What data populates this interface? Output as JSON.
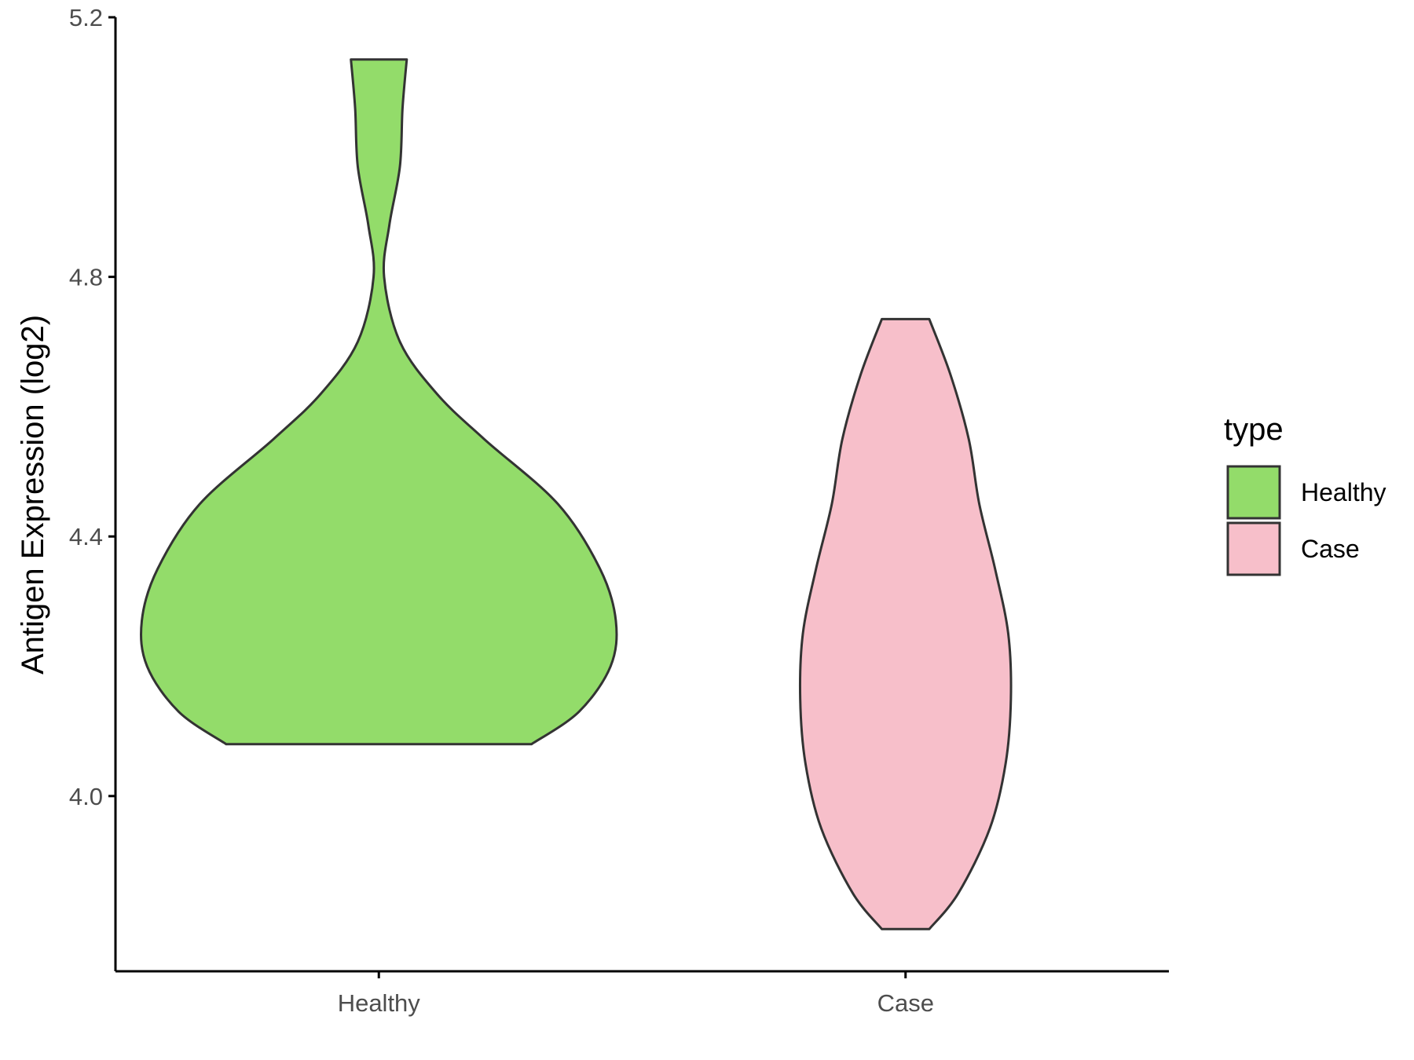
{
  "chart_data": {
    "type": "violin",
    "title": "",
    "xlabel": "",
    "ylabel": "Antigen Expression (log2)",
    "ylim": [
      3.73,
      5.2
    ],
    "yticks": [
      "4.0",
      "4.4",
      "4.8",
      "5.2"
    ],
    "categories": [
      "Healthy",
      "Case"
    ],
    "grid": false,
    "legend": {
      "title": "type",
      "position": "right",
      "entries": [
        "Healthy",
        "Case"
      ]
    },
    "series": [
      {
        "name": "Healthy",
        "color": "#93dc6a",
        "min": 4.08,
        "max": 5.135,
        "density_profile": [
          {
            "y": 4.08,
            "half_width": 0.29
          },
          {
            "y": 4.13,
            "half_width": 0.38
          },
          {
            "y": 4.2,
            "half_width": 0.44
          },
          {
            "y": 4.27,
            "half_width": 0.45
          },
          {
            "y": 4.35,
            "half_width": 0.42
          },
          {
            "y": 4.45,
            "half_width": 0.34
          },
          {
            "y": 4.55,
            "half_width": 0.2
          },
          {
            "y": 4.62,
            "half_width": 0.11
          },
          {
            "y": 4.7,
            "half_width": 0.04
          },
          {
            "y": 4.8,
            "half_width": 0.01
          },
          {
            "y": 4.88,
            "half_width": 0.02
          },
          {
            "y": 4.97,
            "half_width": 0.04
          },
          {
            "y": 5.06,
            "half_width": 0.045
          },
          {
            "y": 5.135,
            "half_width": 0.053
          }
        ]
      },
      {
        "name": "Case",
        "color": "#f7bfca",
        "min": 3.795,
        "max": 4.735,
        "density_profile": [
          {
            "y": 3.795,
            "half_width": 0.045
          },
          {
            "y": 3.85,
            "half_width": 0.1
          },
          {
            "y": 3.95,
            "half_width": 0.16
          },
          {
            "y": 4.05,
            "half_width": 0.19
          },
          {
            "y": 4.15,
            "half_width": 0.2
          },
          {
            "y": 4.25,
            "half_width": 0.195
          },
          {
            "y": 4.35,
            "half_width": 0.17
          },
          {
            "y": 4.45,
            "half_width": 0.14
          },
          {
            "y": 4.55,
            "half_width": 0.12
          },
          {
            "y": 4.65,
            "half_width": 0.085
          },
          {
            "y": 4.735,
            "half_width": 0.045
          }
        ]
      }
    ]
  }
}
